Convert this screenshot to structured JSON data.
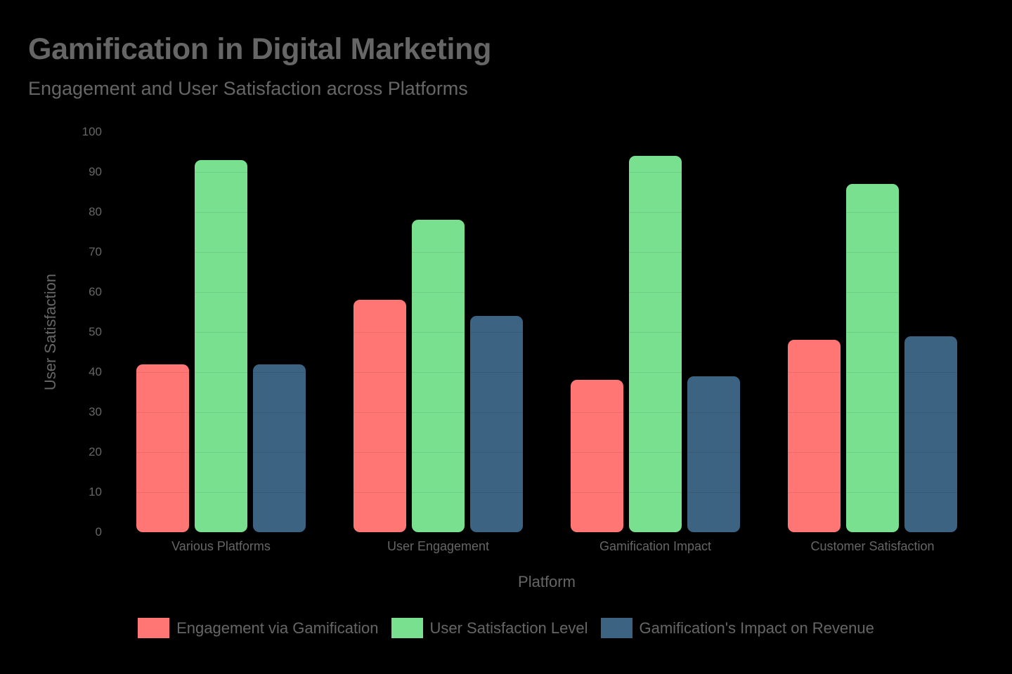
{
  "title": "Gamification in Digital Marketing",
  "subtitle": "Engagement and User Satisfaction across Platforms",
  "chart_data": {
    "type": "bar",
    "title": "Gamification in Digital Marketing",
    "subtitle": "Engagement and User Satisfaction across Platforms",
    "xlabel": "Platform",
    "ylabel": "User Satisfaction",
    "ylim": [
      0,
      100
    ],
    "yticks": [
      0,
      10,
      20,
      30,
      40,
      50,
      60,
      70,
      80,
      90,
      100
    ],
    "grid": true,
    "legend_position": "bottom",
    "categories": [
      "Various Platforms",
      "User Engagement",
      "Gamification Impact",
      "Customer Satisfaction"
    ],
    "series": [
      {
        "name": "Engagement via Gamification",
        "color": "#ff7675",
        "values": [
          42,
          58,
          38,
          48
        ]
      },
      {
        "name": "User Satisfaction Level",
        "color": "#78e08f",
        "values": [
          93,
          78,
          94,
          87
        ]
      },
      {
        "name": "Gamification's Impact on Revenue",
        "color": "#3c6382",
        "values": [
          42,
          54,
          39,
          49
        ]
      }
    ]
  }
}
